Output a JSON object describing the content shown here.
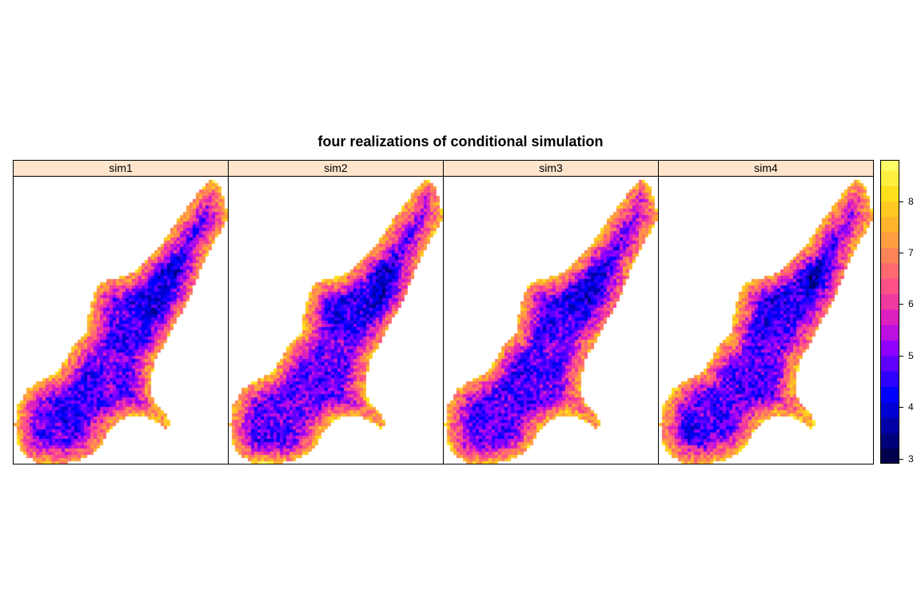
{
  "chart_data": {
    "type": "heatmap",
    "title": "four realizations of conditional simulation",
    "panels": [
      "sim1",
      "sim2",
      "sim3",
      "sim4"
    ],
    "colorkey": {
      "min": 2.9,
      "max": 8.8,
      "breaks": [
        2.9,
        3.2,
        3.5,
        3.8,
        4.1,
        4.4,
        4.7,
        5.0,
        5.3,
        5.6,
        5.9,
        6.2,
        6.5,
        6.8,
        7.1,
        7.4,
        7.7,
        8.0,
        8.3,
        8.6,
        8.8
      ],
      "ticks": [
        3,
        4,
        5,
        6,
        7,
        8
      ],
      "tick_labels": [
        "3",
        "4",
        "5",
        "6",
        "7",
        "8"
      ],
      "colors": [
        "#00004d",
        "#00007a",
        "#0000a6",
        "#0000d3",
        "#0000ff",
        "#3000ff",
        "#6000ff",
        "#8f00ff",
        "#bb10e0",
        "#dd20c0",
        "#f03aa0",
        "#ff5088",
        "#ff6a70",
        "#ff8458",
        "#ff9d40",
        "#ffb42b",
        "#ffca22",
        "#ffe01c",
        "#fff040",
        "#ffff66"
      ]
    },
    "typical_value_range": {
      "interior": [
        4.0,
        5.5
      ],
      "edge": [
        6.5,
        8.0
      ]
    }
  }
}
